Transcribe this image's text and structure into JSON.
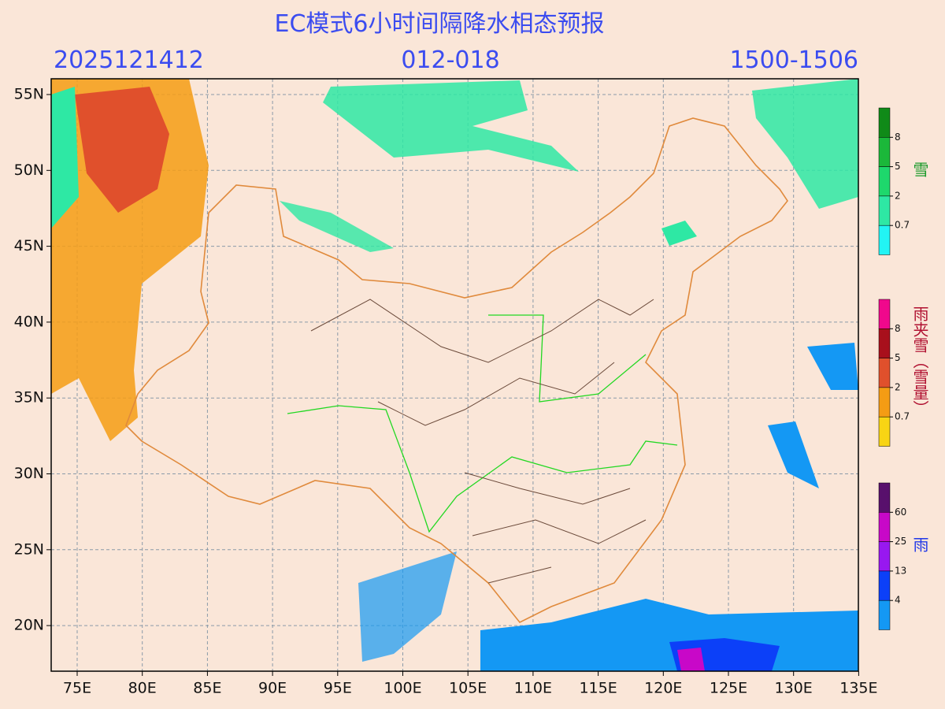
{
  "header": {
    "title": "EC模式6小时间隔降水相态预报",
    "left": "2025121412",
    "center": "012-018",
    "right": "1500-1506"
  },
  "axes": {
    "x_ticks": [
      "75E",
      "80E",
      "85E",
      "90E",
      "95E",
      "100E",
      "105E",
      "110E",
      "115E",
      "120E",
      "125E",
      "130E",
      "135E"
    ],
    "y_ticks": [
      "55N",
      "50N",
      "45N",
      "40N",
      "35N",
      "30N",
      "25N",
      "20N"
    ]
  },
  "legends": [
    {
      "title": "雪",
      "levels": [
        "8",
        "5",
        "2",
        "0.7"
      ],
      "colors": [
        "#108a18",
        "#1bb83a",
        "#1ed86c",
        "#2ee8a4",
        "#22f4f4"
      ],
      "title_color": "#1a9a2a"
    },
    {
      "title": "雨夹雪（雪量）",
      "levels": [
        "8",
        "5",
        "2",
        "0.7"
      ],
      "colors": [
        "#f0088c",
        "#a8101c",
        "#e0502c",
        "#f49c14",
        "#f8d414"
      ],
      "title_color": "#b01030"
    },
    {
      "title": "雨",
      "levels": [
        "60",
        "25",
        "13",
        "4"
      ],
      "colors": [
        "#58106c",
        "#c808c8",
        "#9818f0",
        "#0c40f8",
        "#1498f4"
      ],
      "title_color": "#2038e8"
    }
  ]
}
